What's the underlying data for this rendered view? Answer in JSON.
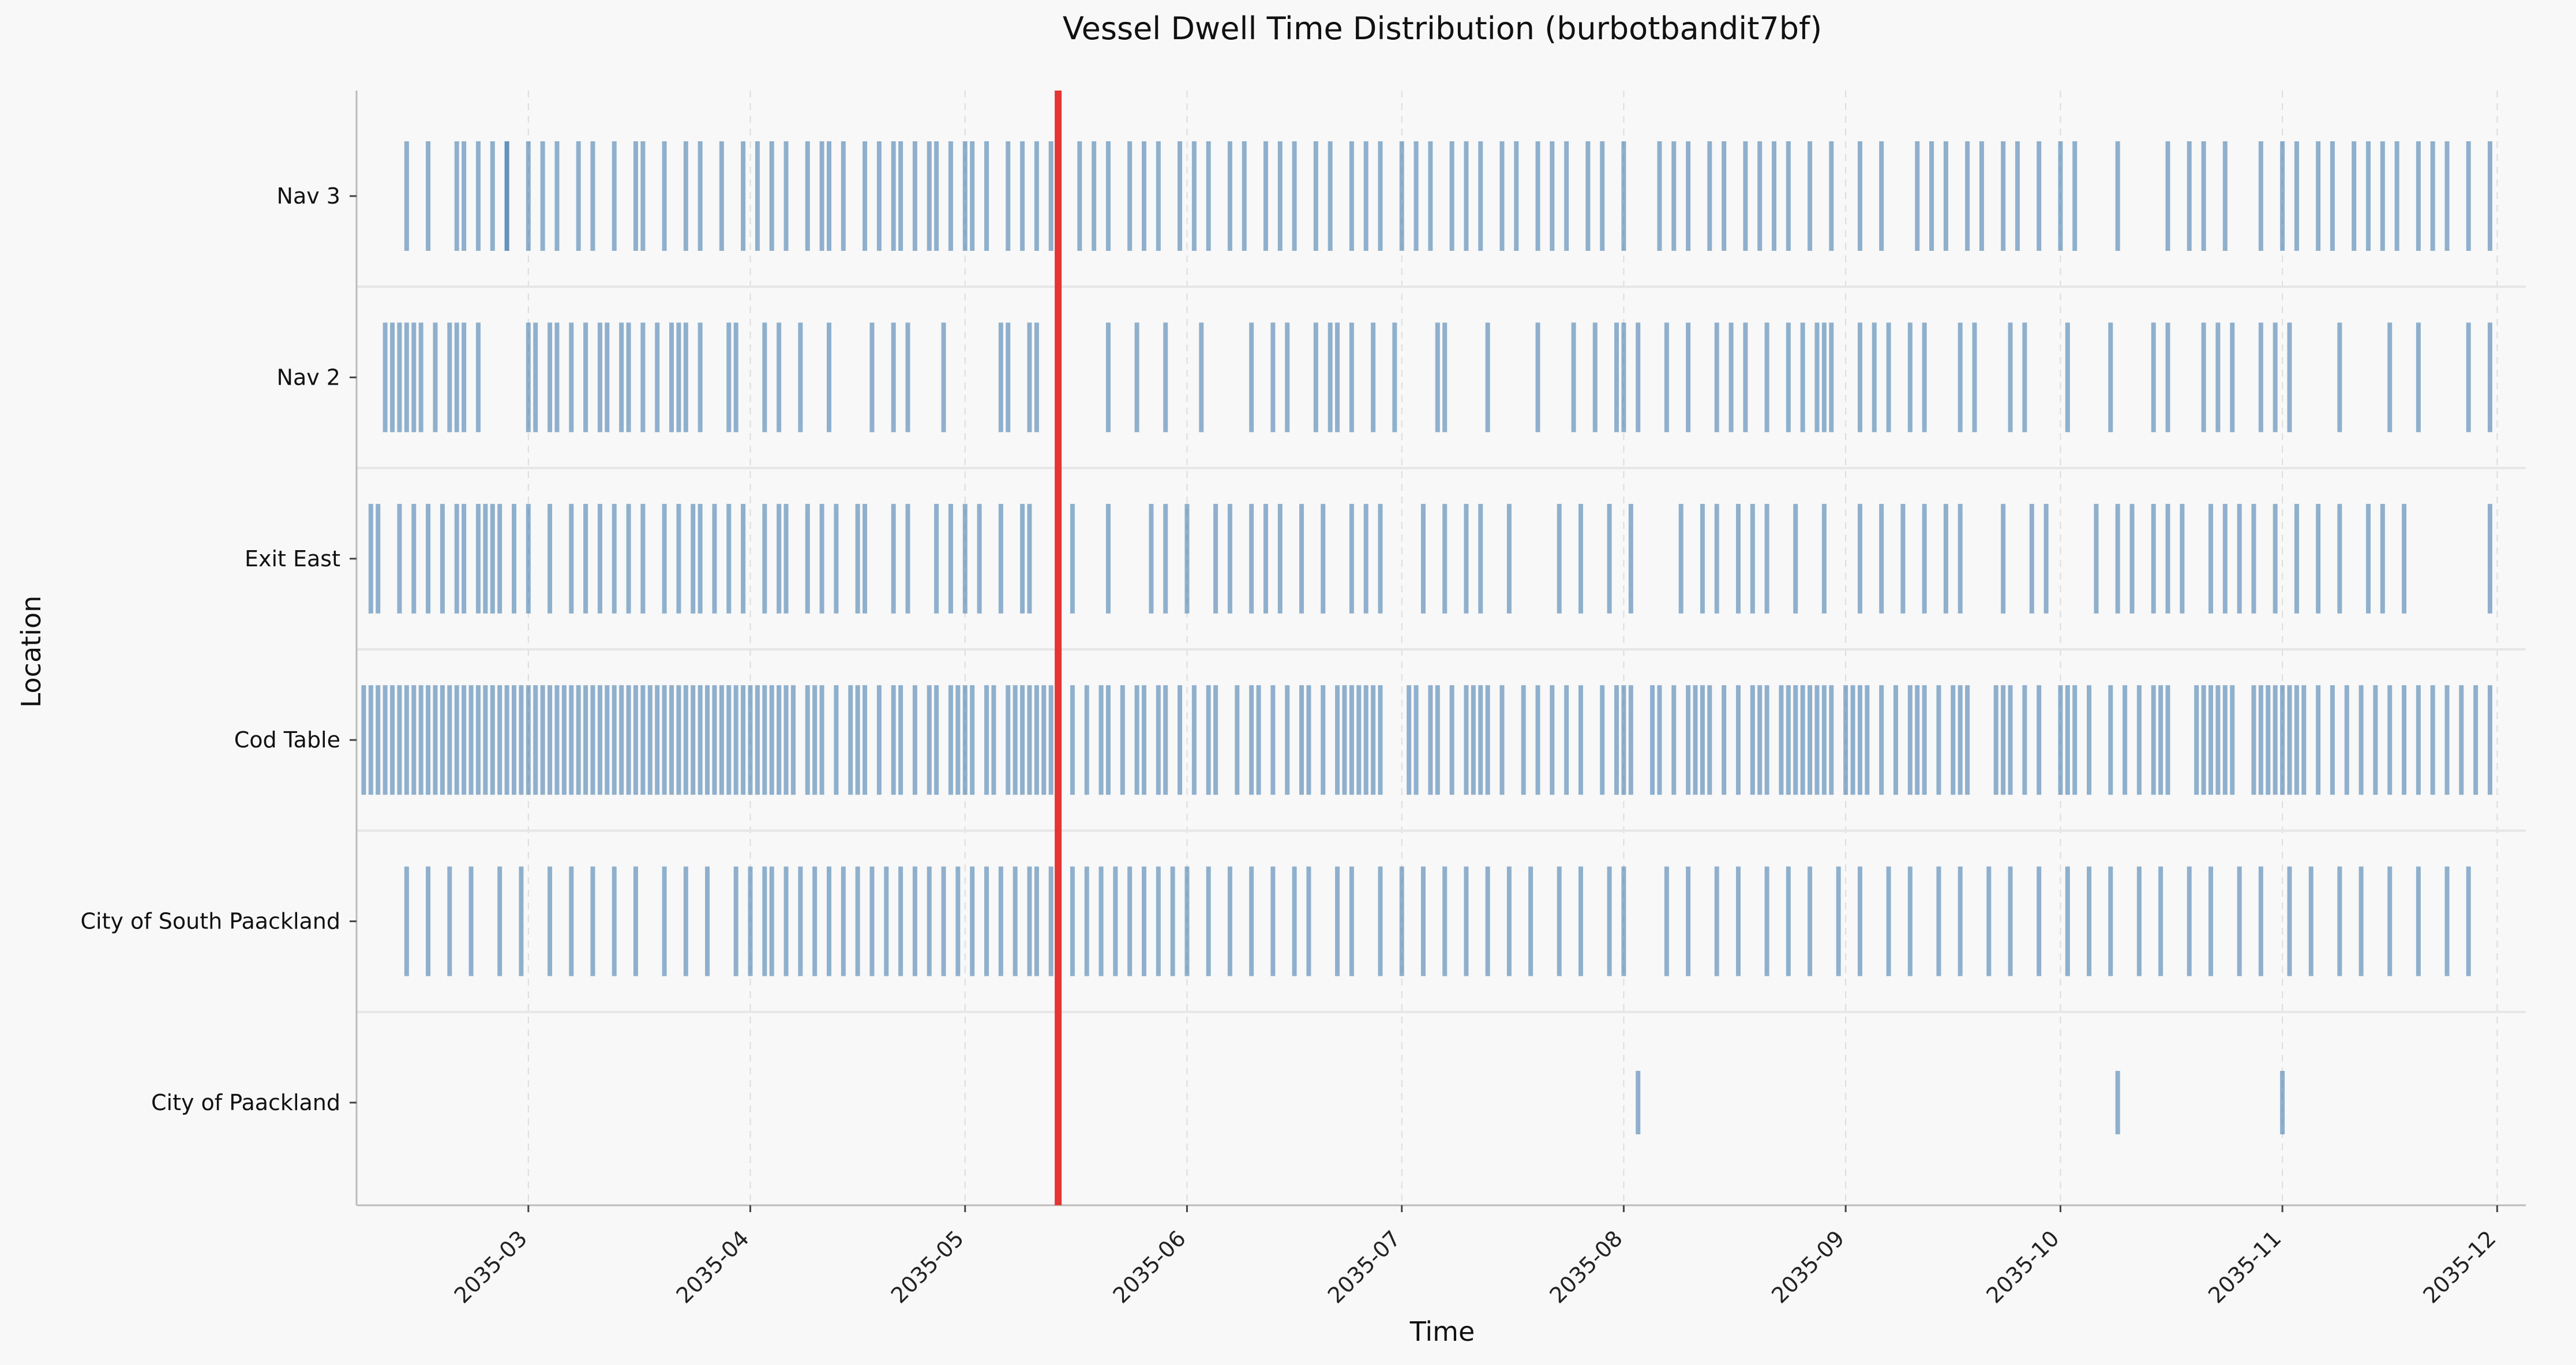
{
  "chart_data": {
    "type": "event-strip",
    "title": "Vessel Dwell Time Distribution (burbotbandit7bf)",
    "xlabel": "Time",
    "ylabel": "Location",
    "x_range": [
      "2035-02-05",
      "2035-12-05"
    ],
    "x_ticks": [
      "2035-03",
      "2035-04",
      "2035-05",
      "2035-06",
      "2035-07",
      "2035-08",
      "2035-09",
      "2035-10",
      "2035-11",
      "2035-12"
    ],
    "x_grid": true,
    "marker_date": "2035-05-14",
    "colors": {
      "event": "#4a80b0",
      "marker": "#e53535",
      "background": "#f8f8f8",
      "separator": "#e6e6e6"
    },
    "categories": [
      "Nav 3",
      "Nav 2",
      "Exit East",
      "Cod Table",
      "City of South Paackland",
      "City of Paackland"
    ],
    "series": [
      {
        "name": "Nav 3",
        "dates": [
          "2035-02-12",
          "2035-02-15",
          "2035-02-19",
          "2035-02-20",
          "2035-02-22",
          "2035-02-24",
          "2035-02-26",
          "2035-02-26",
          "2035-03-01",
          "2035-03-03",
          "2035-03-05",
          "2035-03-08",
          "2035-03-10",
          "2035-03-13",
          "2035-03-16",
          "2035-03-17",
          "2035-03-20",
          "2035-03-23",
          "2035-03-25",
          "2035-03-28",
          "2035-03-31",
          "2035-04-02",
          "2035-04-04",
          "2035-04-06",
          "2035-04-09",
          "2035-04-11",
          "2035-04-12",
          "2035-04-14",
          "2035-04-17",
          "2035-04-19",
          "2035-04-21",
          "2035-04-22",
          "2035-04-24",
          "2035-04-26",
          "2035-04-27",
          "2035-04-29",
          "2035-05-01",
          "2035-05-02",
          "2035-05-04",
          "2035-05-07",
          "2035-05-09",
          "2035-05-11",
          "2035-05-13",
          "2035-05-17",
          "2035-05-19",
          "2035-05-21",
          "2035-05-24",
          "2035-05-26",
          "2035-05-28",
          "2035-05-31",
          "2035-06-02",
          "2035-06-04",
          "2035-06-07",
          "2035-06-09",
          "2035-06-12",
          "2035-06-14",
          "2035-06-16",
          "2035-06-19",
          "2035-06-21",
          "2035-06-24",
          "2035-06-26",
          "2035-06-28",
          "2035-07-01",
          "2035-07-03",
          "2035-07-05",
          "2035-07-08",
          "2035-07-10",
          "2035-07-12",
          "2035-07-15",
          "2035-07-17",
          "2035-07-20",
          "2035-07-22",
          "2035-07-24",
          "2035-07-27",
          "2035-07-29",
          "2035-08-01",
          "2035-08-06",
          "2035-08-08",
          "2035-08-10",
          "2035-08-13",
          "2035-08-15",
          "2035-08-18",
          "2035-08-20",
          "2035-08-22",
          "2035-08-24",
          "2035-08-27",
          "2035-08-30",
          "2035-09-03",
          "2035-09-06",
          "2035-09-11",
          "2035-09-13",
          "2035-09-15",
          "2035-09-18",
          "2035-09-20",
          "2035-09-23",
          "2035-09-25",
          "2035-09-28",
          "2035-10-01",
          "2035-10-03",
          "2035-10-09",
          "2035-10-16",
          "2035-10-19",
          "2035-10-21",
          "2035-10-24",
          "2035-10-29",
          "2035-11-01",
          "2035-11-03",
          "2035-11-06",
          "2035-11-08",
          "2035-11-11",
          "2035-11-13",
          "2035-11-15",
          "2035-11-17",
          "2035-11-20",
          "2035-11-22",
          "2035-11-24",
          "2035-11-27",
          "2035-11-30"
        ]
      },
      {
        "name": "Nav 2",
        "dates": [
          "2035-02-09",
          "2035-02-10",
          "2035-02-11",
          "2035-02-12",
          "2035-02-13",
          "2035-02-14",
          "2035-02-16",
          "2035-02-18",
          "2035-02-19",
          "2035-02-20",
          "2035-02-22",
          "2035-03-01",
          "2035-03-02",
          "2035-03-04",
          "2035-03-05",
          "2035-03-07",
          "2035-03-09",
          "2035-03-11",
          "2035-03-12",
          "2035-03-14",
          "2035-03-15",
          "2035-03-17",
          "2035-03-19",
          "2035-03-21",
          "2035-03-22",
          "2035-03-23",
          "2035-03-25",
          "2035-03-29",
          "2035-03-30",
          "2035-04-03",
          "2035-04-05",
          "2035-04-08",
          "2035-04-12",
          "2035-04-18",
          "2035-04-21",
          "2035-04-23",
          "2035-04-28",
          "2035-05-06",
          "2035-05-07",
          "2035-05-10",
          "2035-05-11",
          "2035-05-14",
          "2035-05-21",
          "2035-05-25",
          "2035-05-29",
          "2035-06-03",
          "2035-06-10",
          "2035-06-13",
          "2035-06-15",
          "2035-06-19",
          "2035-06-21",
          "2035-06-22",
          "2035-06-24",
          "2035-06-27",
          "2035-06-30",
          "2035-07-06",
          "2035-07-07",
          "2035-07-13",
          "2035-07-20",
          "2035-07-25",
          "2035-07-28",
          "2035-07-31",
          "2035-08-01",
          "2035-08-03",
          "2035-08-07",
          "2035-08-10",
          "2035-08-14",
          "2035-08-16",
          "2035-08-18",
          "2035-08-21",
          "2035-08-24",
          "2035-08-26",
          "2035-08-28",
          "2035-08-29",
          "2035-08-30",
          "2035-09-03",
          "2035-09-05",
          "2035-09-07",
          "2035-09-10",
          "2035-09-12",
          "2035-09-17",
          "2035-09-19",
          "2035-09-24",
          "2035-09-26",
          "2035-10-02",
          "2035-10-08",
          "2035-10-14",
          "2035-10-16",
          "2035-10-21",
          "2035-10-23",
          "2035-10-25",
          "2035-10-29",
          "2035-10-31",
          "2035-11-02",
          "2035-11-09",
          "2035-11-16",
          "2035-11-20",
          "2035-11-27",
          "2035-11-30"
        ]
      },
      {
        "name": "Exit East",
        "dates": [
          "2035-02-07",
          "2035-02-08",
          "2035-02-11",
          "2035-02-13",
          "2035-02-15",
          "2035-02-17",
          "2035-02-19",
          "2035-02-20",
          "2035-02-22",
          "2035-02-23",
          "2035-02-24",
          "2035-02-25",
          "2035-02-27",
          "2035-03-01",
          "2035-03-04",
          "2035-03-07",
          "2035-03-09",
          "2035-03-11",
          "2035-03-13",
          "2035-03-15",
          "2035-03-17",
          "2035-03-20",
          "2035-03-22",
          "2035-03-24",
          "2035-03-25",
          "2035-03-27",
          "2035-03-29",
          "2035-03-31",
          "2035-04-03",
          "2035-04-05",
          "2035-04-06",
          "2035-04-09",
          "2035-04-11",
          "2035-04-13",
          "2035-04-16",
          "2035-04-17",
          "2035-04-21",
          "2035-04-23",
          "2035-04-27",
          "2035-04-29",
          "2035-05-01",
          "2035-05-03",
          "2035-05-06",
          "2035-05-09",
          "2035-05-10",
          "2035-05-16",
          "2035-05-21",
          "2035-05-27",
          "2035-05-29",
          "2035-06-01",
          "2035-06-05",
          "2035-06-07",
          "2035-06-10",
          "2035-06-12",
          "2035-06-14",
          "2035-06-17",
          "2035-06-20",
          "2035-06-24",
          "2035-06-26",
          "2035-06-28",
          "2035-07-04",
          "2035-07-07",
          "2035-07-10",
          "2035-07-12",
          "2035-07-16",
          "2035-07-23",
          "2035-07-26",
          "2035-07-30",
          "2035-08-02",
          "2035-08-09",
          "2035-08-12",
          "2035-08-14",
          "2035-08-17",
          "2035-08-19",
          "2035-08-21",
          "2035-08-25",
          "2035-08-29",
          "2035-09-03",
          "2035-09-06",
          "2035-09-09",
          "2035-09-12",
          "2035-09-15",
          "2035-09-17",
          "2035-09-23",
          "2035-09-27",
          "2035-09-29",
          "2035-10-06",
          "2035-10-09",
          "2035-10-11",
          "2035-10-14",
          "2035-10-16",
          "2035-10-18",
          "2035-10-22",
          "2035-10-24",
          "2035-10-26",
          "2035-10-28",
          "2035-10-31",
          "2035-11-03",
          "2035-11-06",
          "2035-11-09",
          "2035-11-13",
          "2035-11-15",
          "2035-11-18",
          "2035-11-30"
        ]
      },
      {
        "name": "Cod Table",
        "dates": [
          "2035-02-06",
          "2035-02-07",
          "2035-02-08",
          "2035-02-09",
          "2035-02-10",
          "2035-02-11",
          "2035-02-12",
          "2035-02-13",
          "2035-02-14",
          "2035-02-15",
          "2035-02-16",
          "2035-02-17",
          "2035-02-18",
          "2035-02-19",
          "2035-02-20",
          "2035-02-21",
          "2035-02-22",
          "2035-02-23",
          "2035-02-24",
          "2035-02-25",
          "2035-02-26",
          "2035-02-27",
          "2035-02-28",
          "2035-03-01",
          "2035-03-02",
          "2035-03-03",
          "2035-03-04",
          "2035-03-05",
          "2035-03-06",
          "2035-03-07",
          "2035-03-08",
          "2035-03-09",
          "2035-03-10",
          "2035-03-11",
          "2035-03-12",
          "2035-03-13",
          "2035-03-14",
          "2035-03-15",
          "2035-03-16",
          "2035-03-17",
          "2035-03-18",
          "2035-03-19",
          "2035-03-20",
          "2035-03-21",
          "2035-03-22",
          "2035-03-23",
          "2035-03-24",
          "2035-03-25",
          "2035-03-26",
          "2035-03-27",
          "2035-03-28",
          "2035-03-29",
          "2035-03-30",
          "2035-03-31",
          "2035-04-01",
          "2035-04-02",
          "2035-04-03",
          "2035-04-04",
          "2035-04-05",
          "2035-04-06",
          "2035-04-07",
          "2035-04-09",
          "2035-04-10",
          "2035-04-11",
          "2035-04-13",
          "2035-04-15",
          "2035-04-16",
          "2035-04-17",
          "2035-04-19",
          "2035-04-21",
          "2035-04-22",
          "2035-04-24",
          "2035-04-26",
          "2035-04-27",
          "2035-04-29",
          "2035-04-30",
          "2035-05-01",
          "2035-05-02",
          "2035-05-04",
          "2035-05-05",
          "2035-05-07",
          "2035-05-08",
          "2035-05-09",
          "2035-05-10",
          "2035-05-11",
          "2035-05-12",
          "2035-05-13",
          "2035-05-16",
          "2035-05-18",
          "2035-05-20",
          "2035-05-21",
          "2035-05-23",
          "2035-05-25",
          "2035-05-26",
          "2035-05-28",
          "2035-05-29",
          "2035-05-31",
          "2035-06-02",
          "2035-06-04",
          "2035-06-05",
          "2035-06-08",
          "2035-06-10",
          "2035-06-11",
          "2035-06-13",
          "2035-06-15",
          "2035-06-17",
          "2035-06-18",
          "2035-06-20",
          "2035-06-22",
          "2035-06-23",
          "2035-06-24",
          "2035-06-25",
          "2035-06-26",
          "2035-06-27",
          "2035-06-28",
          "2035-07-02",
          "2035-07-03",
          "2035-07-05",
          "2035-07-06",
          "2035-07-08",
          "2035-07-10",
          "2035-07-11",
          "2035-07-12",
          "2035-07-13",
          "2035-07-15",
          "2035-07-18",
          "2035-07-20",
          "2035-07-22",
          "2035-07-24",
          "2035-07-26",
          "2035-07-29",
          "2035-07-31",
          "2035-08-01",
          "2035-08-02",
          "2035-08-05",
          "2035-08-06",
          "2035-08-08",
          "2035-08-10",
          "2035-08-11",
          "2035-08-12",
          "2035-08-13",
          "2035-08-15",
          "2035-08-17",
          "2035-08-19",
          "2035-08-20",
          "2035-08-21",
          "2035-08-23",
          "2035-08-24",
          "2035-08-25",
          "2035-08-26",
          "2035-08-27",
          "2035-08-28",
          "2035-08-29",
          "2035-08-30",
          "2035-09-01",
          "2035-09-02",
          "2035-09-03",
          "2035-09-04",
          "2035-09-06",
          "2035-09-08",
          "2035-09-10",
          "2035-09-11",
          "2035-09-12",
          "2035-09-14",
          "2035-09-16",
          "2035-09-17",
          "2035-09-18",
          "2035-09-22",
          "2035-09-23",
          "2035-09-24",
          "2035-09-26",
          "2035-09-28",
          "2035-10-01",
          "2035-10-02",
          "2035-10-03",
          "2035-10-05",
          "2035-10-08",
          "2035-10-10",
          "2035-10-12",
          "2035-10-14",
          "2035-10-15",
          "2035-10-16",
          "2035-10-20",
          "2035-10-21",
          "2035-10-22",
          "2035-10-23",
          "2035-10-24",
          "2035-10-25",
          "2035-10-28",
          "2035-10-29",
          "2035-10-30",
          "2035-10-31",
          "2035-11-01",
          "2035-11-02",
          "2035-11-03",
          "2035-11-04",
          "2035-11-06",
          "2035-11-08",
          "2035-11-10",
          "2035-11-12",
          "2035-11-14",
          "2035-11-16",
          "2035-11-18",
          "2035-11-20",
          "2035-11-22",
          "2035-11-24",
          "2035-11-26",
          "2035-11-28",
          "2035-11-30"
        ]
      },
      {
        "name": "City of South Paackland",
        "dates": [
          "2035-02-12",
          "2035-02-15",
          "2035-02-18",
          "2035-02-21",
          "2035-02-25",
          "2035-02-28",
          "2035-03-04",
          "2035-03-07",
          "2035-03-10",
          "2035-03-13",
          "2035-03-16",
          "2035-03-20",
          "2035-03-23",
          "2035-03-26",
          "2035-03-30",
          "2035-04-01",
          "2035-04-03",
          "2035-04-04",
          "2035-04-06",
          "2035-04-08",
          "2035-04-10",
          "2035-04-12",
          "2035-04-14",
          "2035-04-16",
          "2035-04-18",
          "2035-04-20",
          "2035-04-22",
          "2035-04-24",
          "2035-04-26",
          "2035-04-28",
          "2035-04-30",
          "2035-05-02",
          "2035-05-04",
          "2035-05-06",
          "2035-05-08",
          "2035-05-10",
          "2035-05-11",
          "2035-05-13",
          "2035-05-16",
          "2035-05-18",
          "2035-05-20",
          "2035-05-22",
          "2035-05-24",
          "2035-05-26",
          "2035-05-28",
          "2035-05-30",
          "2035-06-01",
          "2035-06-04",
          "2035-06-07",
          "2035-06-10",
          "2035-06-13",
          "2035-06-16",
          "2035-06-18",
          "2035-06-22",
          "2035-06-24",
          "2035-06-28",
          "2035-07-01",
          "2035-07-04",
          "2035-07-07",
          "2035-07-10",
          "2035-07-13",
          "2035-07-16",
          "2035-07-19",
          "2035-07-23",
          "2035-07-26",
          "2035-07-30",
          "2035-08-01",
          "2035-08-07",
          "2035-08-10",
          "2035-08-14",
          "2035-08-17",
          "2035-08-21",
          "2035-08-24",
          "2035-08-27",
          "2035-08-31",
          "2035-09-03",
          "2035-09-07",
          "2035-09-10",
          "2035-09-14",
          "2035-09-17",
          "2035-09-21",
          "2035-09-24",
          "2035-09-28",
          "2035-10-02",
          "2035-10-05",
          "2035-10-08",
          "2035-10-12",
          "2035-10-15",
          "2035-10-19",
          "2035-10-22",
          "2035-10-26",
          "2035-10-29",
          "2035-11-02",
          "2035-11-05",
          "2035-11-09",
          "2035-11-12",
          "2035-11-16",
          "2035-11-20",
          "2035-11-24",
          "2035-11-27"
        ]
      },
      {
        "name": "City of Paackland",
        "dates": [
          "2035-08-03",
          "2035-10-09",
          "2035-11-01"
        ]
      }
    ]
  }
}
